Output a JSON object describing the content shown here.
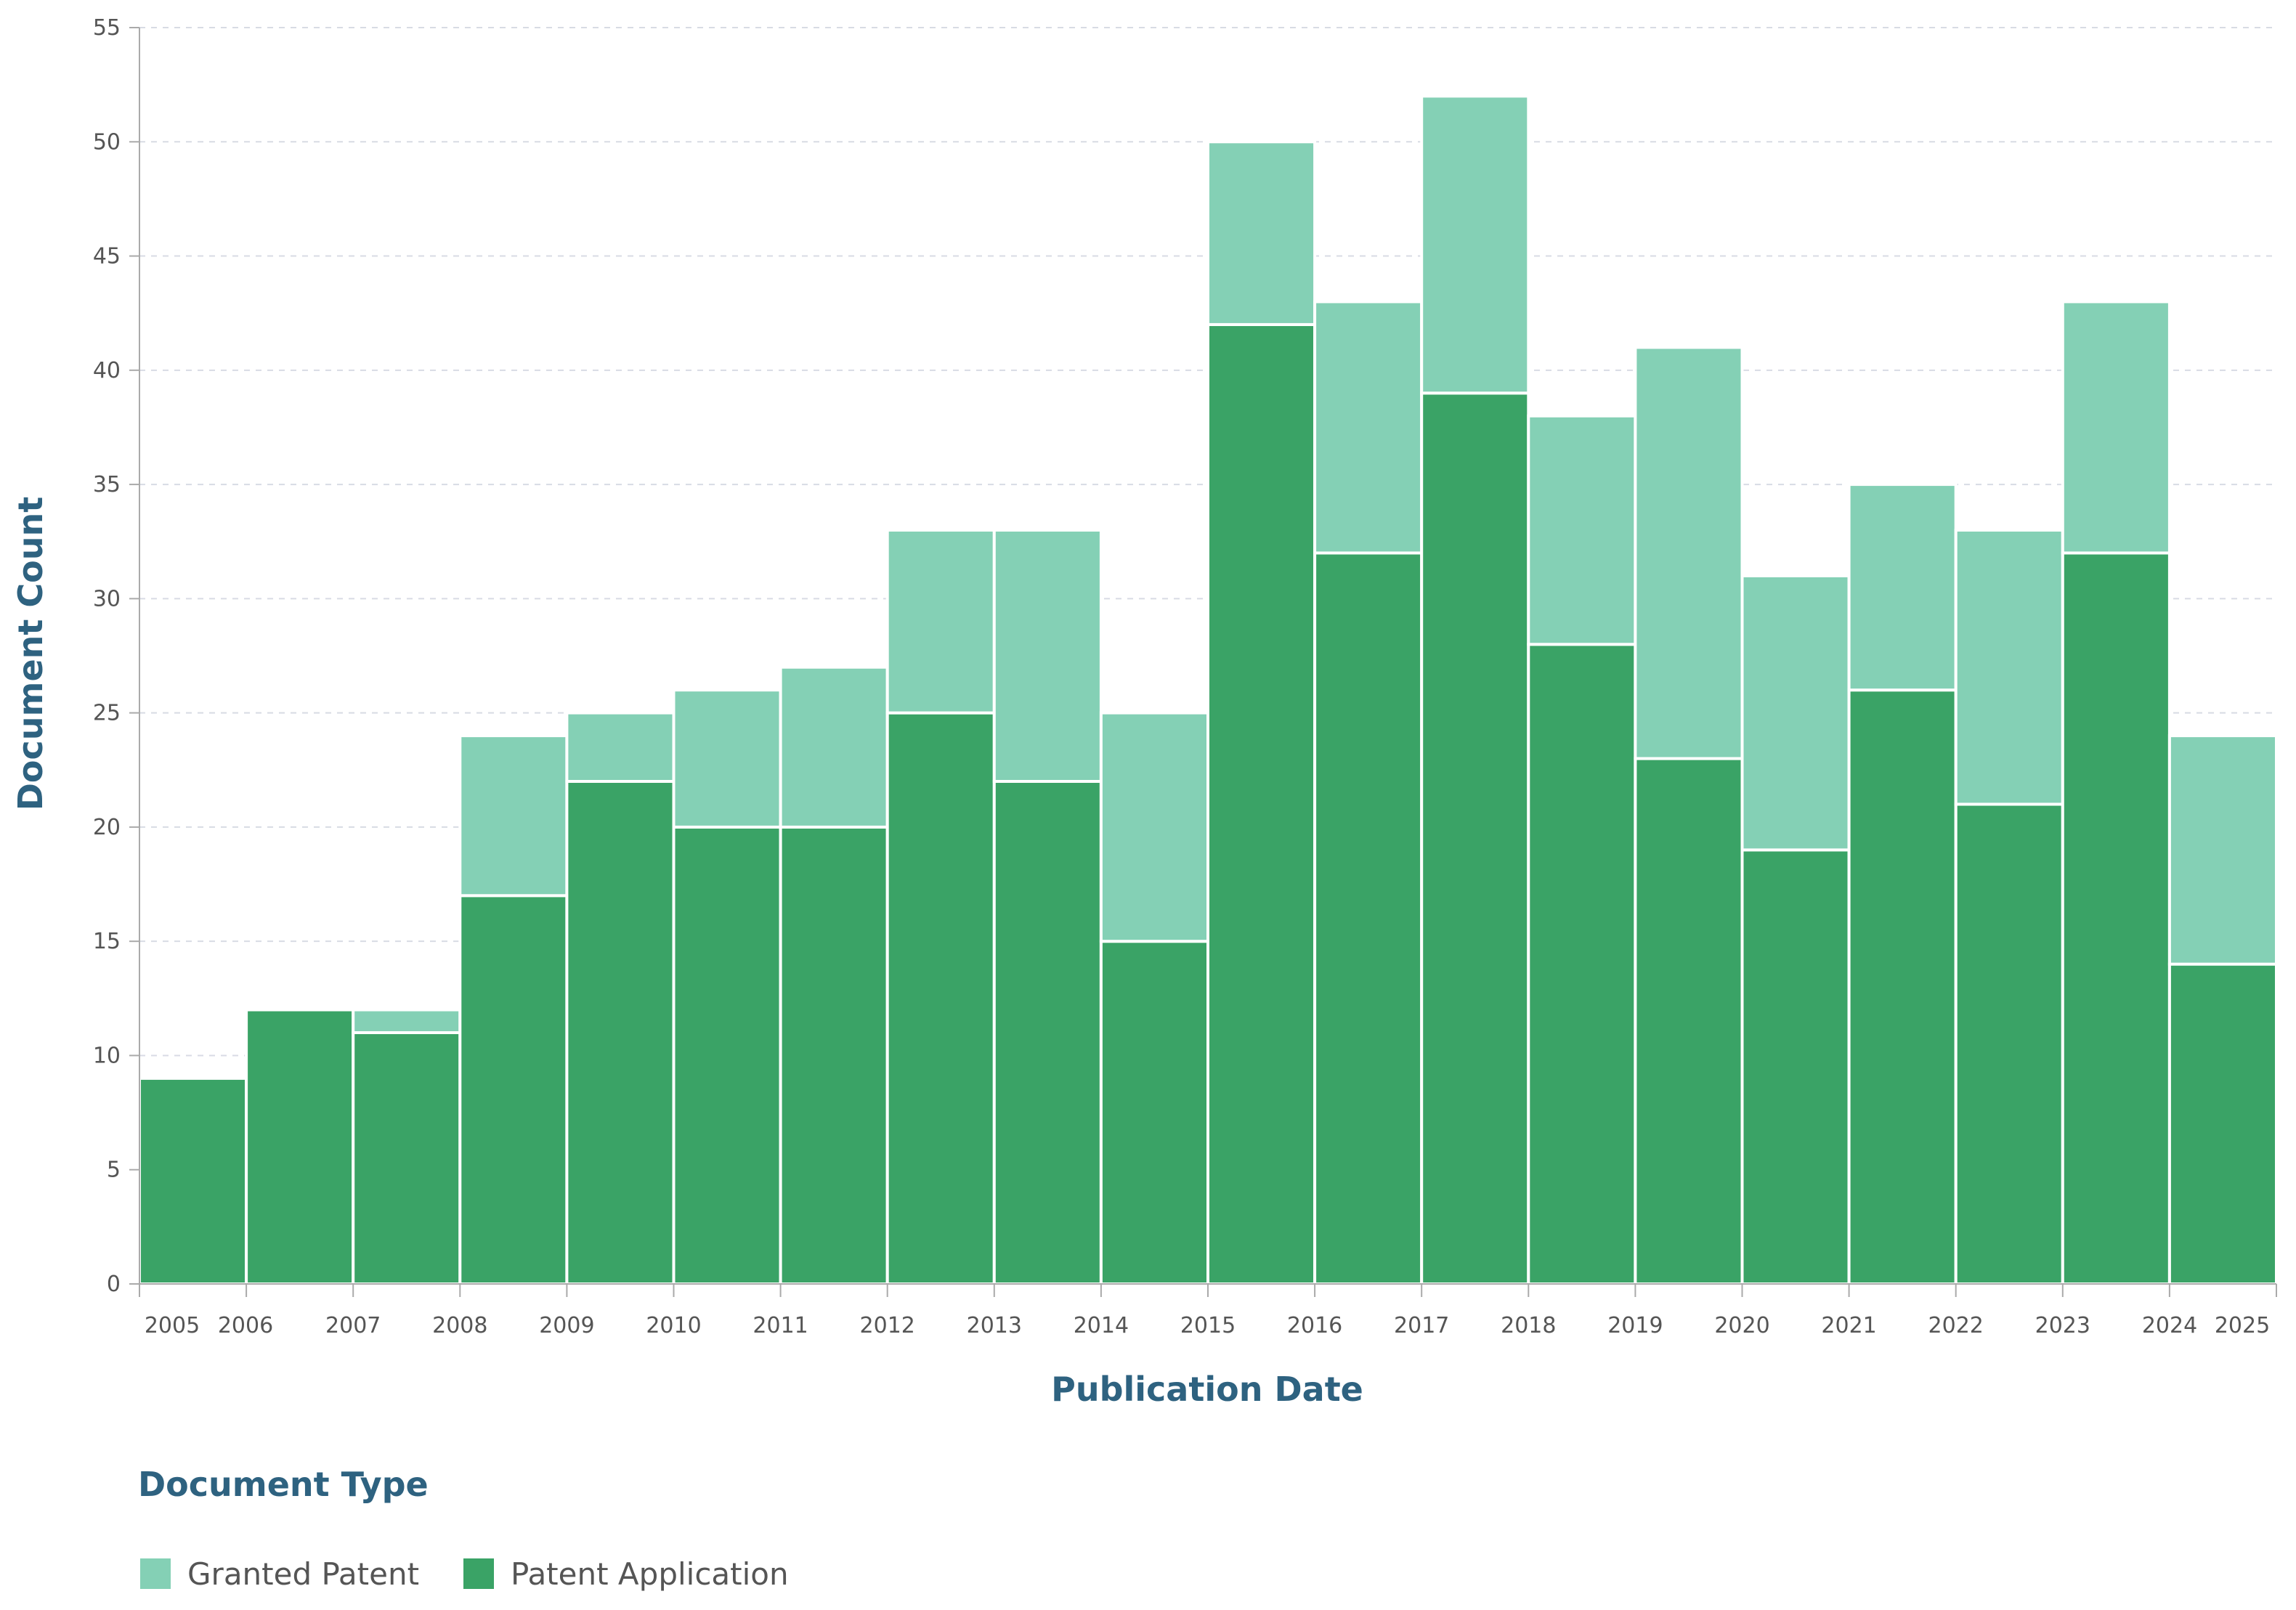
{
  "chart_data": {
    "type": "bar",
    "stacked": true,
    "title": "",
    "xlabel": "Publication Date",
    "ylabel": "Document Count",
    "ylim": [
      0,
      55
    ],
    "yticks": [
      0,
      5,
      10,
      15,
      20,
      25,
      30,
      35,
      40,
      45,
      50,
      55
    ],
    "x_tick_labels": [
      "2005",
      "2006",
      "2007",
      "2008",
      "2009",
      "2010",
      "2011",
      "2012",
      "2013",
      "2014",
      "2015",
      "2016",
      "2017",
      "2018",
      "2019",
      "2020",
      "2021",
      "2022",
      "2023",
      "2024",
      "2025"
    ],
    "grid": true,
    "legend": {
      "title": "Document Type",
      "position": "bottom-left",
      "entries": [
        "Granted Patent",
        "Patent Application"
      ]
    },
    "series": [
      {
        "name": "Patent Application",
        "color": "#3aa366",
        "values": [
          9,
          12,
          11,
          17,
          22,
          20,
          20,
          25,
          22,
          15,
          42,
          32,
          39,
          28,
          23,
          19,
          26,
          21,
          32,
          14
        ]
      },
      {
        "name": "Granted Patent",
        "color": "#84d0b5",
        "values": [
          0,
          0,
          1,
          7,
          3,
          6,
          7,
          8,
          11,
          10,
          8,
          11,
          13,
          10,
          18,
          12,
          9,
          12,
          11,
          10
        ]
      }
    ],
    "totals": [
      9,
      12,
      12,
      24,
      25,
      26,
      27,
      33,
      33,
      25,
      50,
      43,
      52,
      38,
      41,
      31,
      35,
      33,
      43,
      24
    ]
  }
}
